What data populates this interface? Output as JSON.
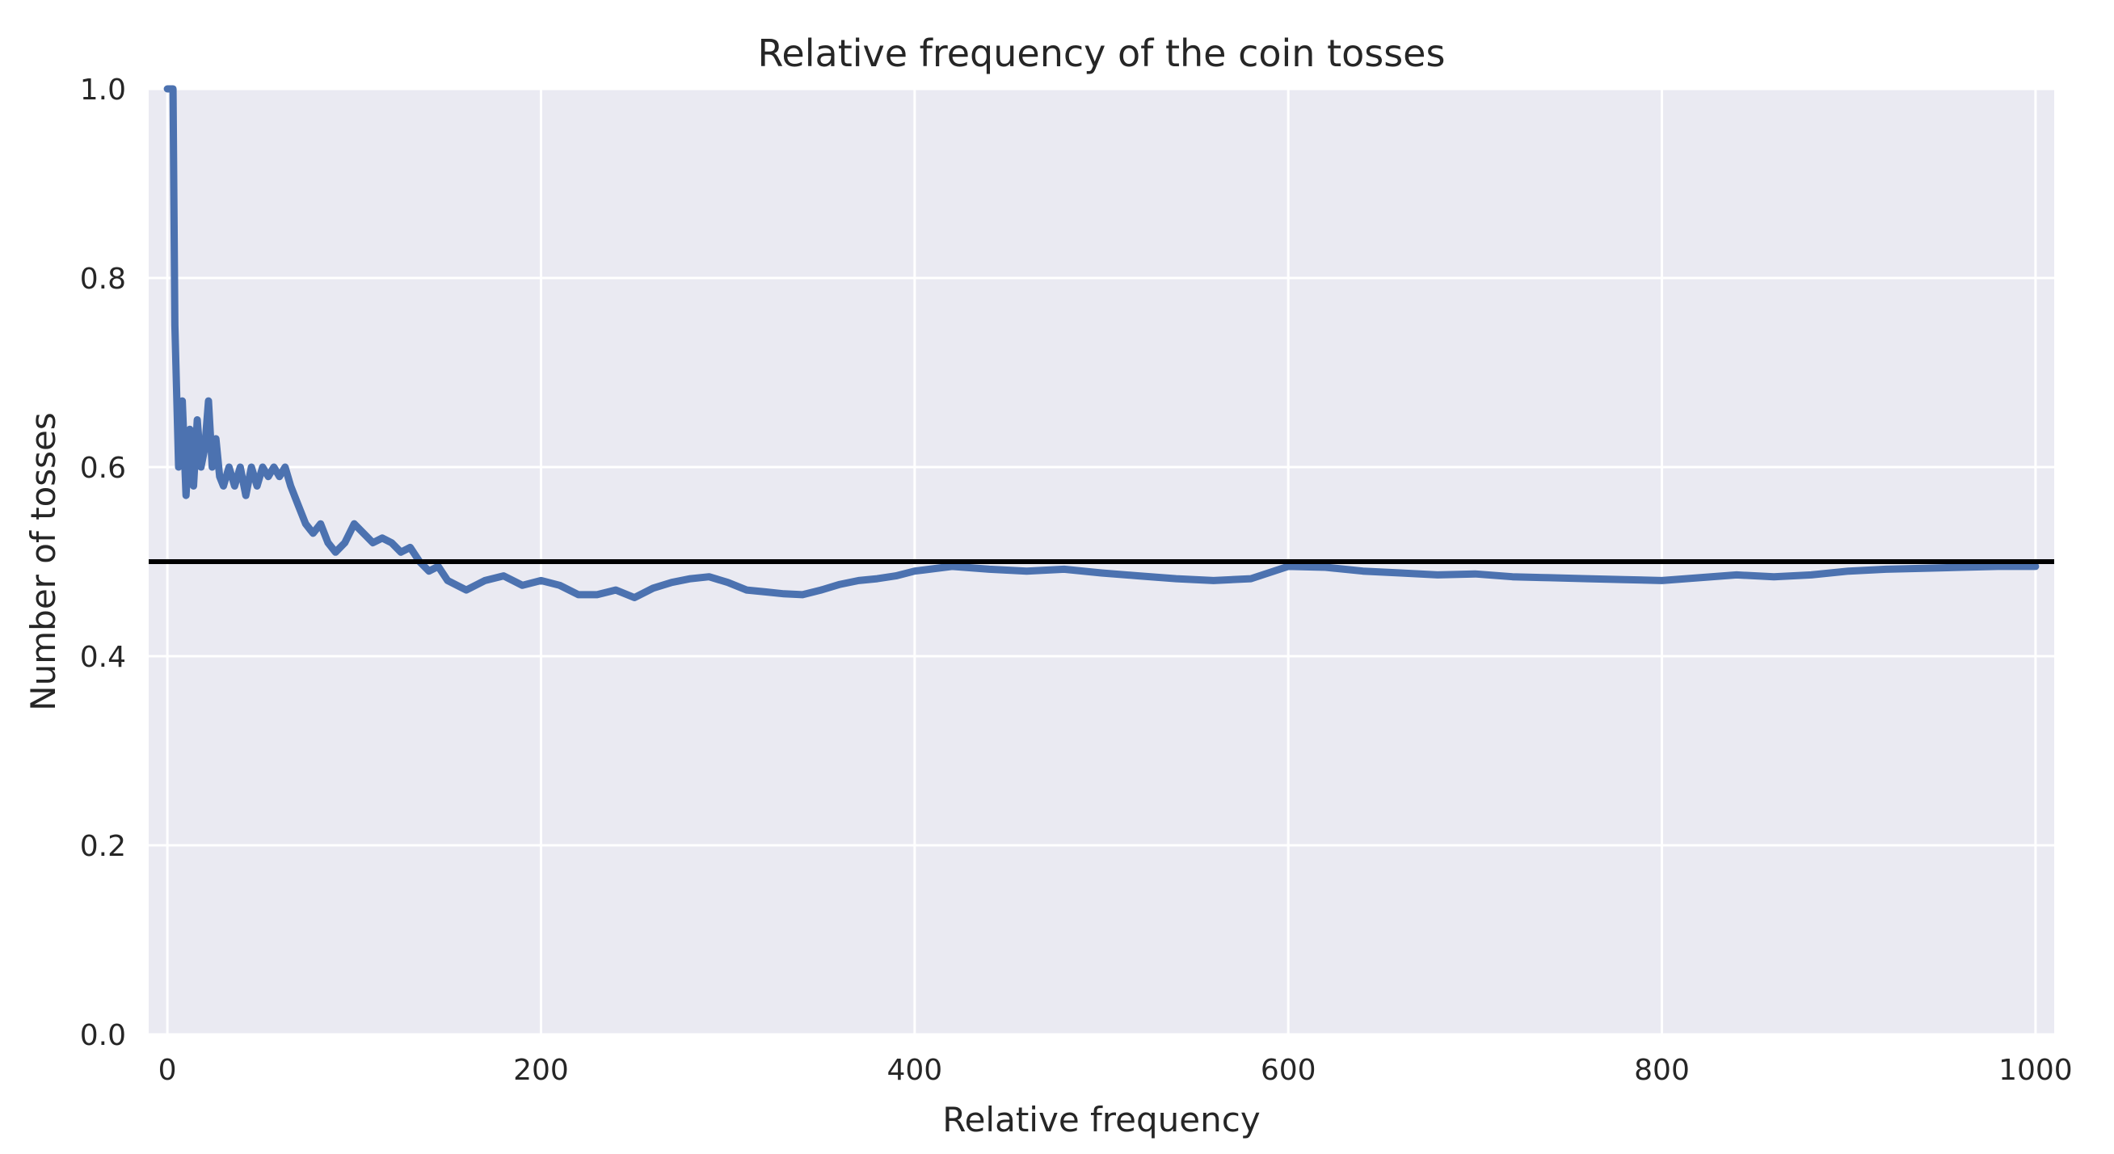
{
  "chart_data": {
    "type": "line",
    "title": "Relative frequency of the coin tosses",
    "xlabel": "Relative frequency",
    "ylabel": "Number of tosses",
    "xlim": [
      -10,
      1010
    ],
    "ylim": [
      0.0,
      1.0
    ],
    "xticks": [
      "0",
      "200",
      "400",
      "600",
      "800",
      "1000"
    ],
    "yticks": [
      "0.0",
      "0.2",
      "0.4",
      "0.6",
      "0.8",
      "1.0"
    ],
    "grid": true,
    "colors": {
      "series": "#4c72b0",
      "reference": "#000000",
      "plot_bg": "#eaeaf2",
      "grid": "#ffffff"
    },
    "reference_line": {
      "y": 0.5
    },
    "series": [
      {
        "x": [
          0,
          3,
          4,
          6,
          8,
          10,
          12,
          14,
          16,
          18,
          20,
          22,
          24,
          26,
          28,
          30,
          33,
          36,
          39,
          42,
          45,
          48,
          51,
          54,
          57,
          60,
          63,
          66,
          70,
          74,
          78,
          82,
          86,
          90,
          95,
          100,
          105,
          110,
          115,
          120,
          125,
          130,
          135,
          140,
          145,
          150,
          155,
          160,
          170,
          180,
          190,
          200,
          210,
          220,
          230,
          240,
          250,
          260,
          270,
          280,
          290,
          300,
          310,
          320,
          330,
          340,
          350,
          360,
          370,
          380,
          390,
          400,
          420,
          440,
          460,
          480,
          500,
          520,
          540,
          560,
          580,
          600,
          620,
          640,
          660,
          680,
          700,
          720,
          740,
          760,
          780,
          800,
          820,
          840,
          860,
          880,
          900,
          920,
          940,
          960,
          980,
          1000
        ],
        "y": [
          1.0,
          1.0,
          0.75,
          0.6,
          0.67,
          0.57,
          0.64,
          0.58,
          0.65,
          0.6,
          0.62,
          0.67,
          0.6,
          0.63,
          0.59,
          0.58,
          0.6,
          0.58,
          0.6,
          0.57,
          0.6,
          0.58,
          0.6,
          0.59,
          0.6,
          0.59,
          0.6,
          0.58,
          0.56,
          0.54,
          0.53,
          0.54,
          0.52,
          0.51,
          0.52,
          0.54,
          0.53,
          0.52,
          0.525,
          0.52,
          0.51,
          0.515,
          0.5,
          0.49,
          0.495,
          0.48,
          0.475,
          0.47,
          0.48,
          0.485,
          0.475,
          0.48,
          0.475,
          0.465,
          0.465,
          0.47,
          0.462,
          0.472,
          0.478,
          0.482,
          0.484,
          0.478,
          0.47,
          0.468,
          0.466,
          0.465,
          0.47,
          0.476,
          0.48,
          0.482,
          0.485,
          0.49,
          0.495,
          0.492,
          0.49,
          0.492,
          0.488,
          0.485,
          0.482,
          0.48,
          0.482,
          0.495,
          0.494,
          0.49,
          0.488,
          0.486,
          0.487,
          0.484,
          0.483,
          0.482,
          0.481,
          0.48,
          0.483,
          0.486,
          0.484,
          0.486,
          0.49,
          0.492,
          0.493,
          0.494,
          0.495,
          0.495
        ]
      }
    ]
  }
}
